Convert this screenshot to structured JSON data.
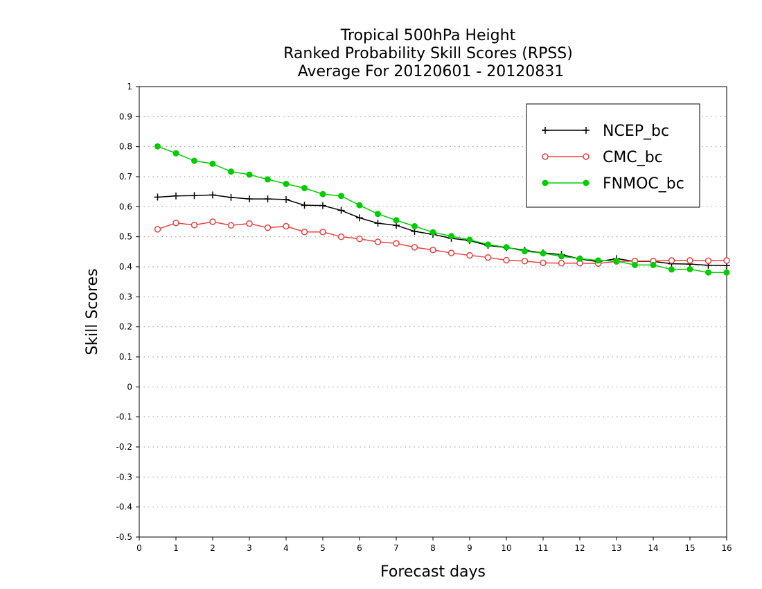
{
  "chart_data": {
    "type": "line",
    "title": [
      "Tropical 500hPa Height",
      "Ranked Probability Skill Scores (RPSS)",
      "Average For 20120601 - 20120831"
    ],
    "xlabel": "Forecast days",
    "ylabel": "Skill Scores",
    "xlim": [
      0,
      16
    ],
    "ylim": [
      -0.5,
      1
    ],
    "x_ticks": [
      "0",
      "1",
      "2",
      "3",
      "4",
      "5",
      "6",
      "7",
      "8",
      "9",
      "10",
      "11",
      "12",
      "13",
      "14",
      "15",
      "16"
    ],
    "y_ticks": [
      "-0.5",
      "-0.4",
      "-0.3",
      "-0.2",
      "-0.1",
      "0",
      "0.1",
      "0.2",
      "0.3",
      "0.4",
      "0.5",
      "0.6",
      "0.7",
      "0.8",
      "0.9",
      "1"
    ],
    "grid": "horizontal dotted",
    "legend_position": "top-right",
    "x": [
      0.5,
      1,
      1.5,
      2,
      2.5,
      3,
      3.5,
      4,
      4.5,
      5,
      5.5,
      6,
      6.5,
      7,
      7.5,
      8,
      8.5,
      9,
      9.5,
      10,
      10.5,
      11,
      11.5,
      12,
      12.5,
      13,
      13.5,
      14,
      14.5,
      15,
      15.5,
      16
    ],
    "series": [
      {
        "name": "NCEP_bc",
        "color": "#000000",
        "marker": "plus",
        "values": [
          0.632,
          0.636,
          0.637,
          0.639,
          0.631,
          0.626,
          0.626,
          0.624,
          0.605,
          0.604,
          0.588,
          0.563,
          0.545,
          0.538,
          0.518,
          0.508,
          0.495,
          0.487,
          0.471,
          0.464,
          0.455,
          0.446,
          0.441,
          0.426,
          0.417,
          0.427,
          0.418,
          0.418,
          0.41,
          0.409,
          0.405,
          0.404
        ]
      },
      {
        "name": "CMC_bc",
        "color": "#e84040",
        "marker": "open-circle",
        "values": [
          0.525,
          0.546,
          0.539,
          0.55,
          0.538,
          0.544,
          0.53,
          0.535,
          0.516,
          0.516,
          0.5,
          0.493,
          0.483,
          0.478,
          0.465,
          0.456,
          0.446,
          0.438,
          0.431,
          0.422,
          0.419,
          0.413,
          0.412,
          0.412,
          0.411,
          0.418,
          0.419,
          0.419,
          0.421,
          0.421,
          0.42,
          0.421
        ]
      },
      {
        "name": "FNMOC_bc",
        "color": "#00cc00",
        "marker": "filled-circle",
        "values": [
          0.801,
          0.778,
          0.753,
          0.743,
          0.717,
          0.707,
          0.691,
          0.676,
          0.662,
          0.642,
          0.636,
          0.605,
          0.576,
          0.555,
          0.535,
          0.515,
          0.502,
          0.49,
          0.474,
          0.465,
          0.452,
          0.445,
          0.435,
          0.427,
          0.421,
          0.419,
          0.406,
          0.406,
          0.391,
          0.392,
          0.381,
          0.381
        ]
      }
    ]
  }
}
